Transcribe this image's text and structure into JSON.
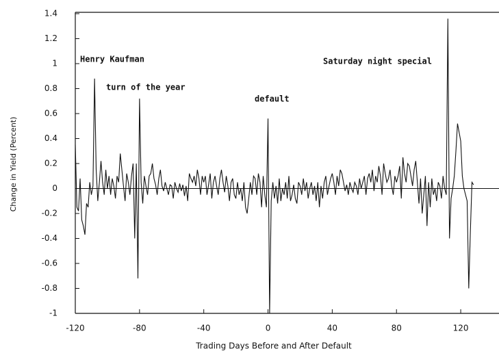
{
  "chart_data": {
    "type": "line",
    "ylabel": "Change in Yield (Percent)",
    "xlabel": "Trading Days Before and After Default",
    "annotations": [
      "Henry Kaufman",
      "turn of the year",
      "default",
      "Saturday night special"
    ],
    "xlim": [
      -120,
      140
    ],
    "ylim": [
      -1,
      1.4
    ],
    "xticks": [
      -120,
      -80,
      -40,
      0,
      40,
      80,
      120
    ],
    "yticks": [
      -1,
      -0.8,
      -0.6,
      -0.4,
      -0.2,
      0,
      0.2,
      0.4,
      0.6,
      0.8,
      1,
      1.2,
      1.4
    ],
    "color": "#111111",
    "x": [
      -120,
      -119,
      -118,
      -117,
      -116,
      -115,
      -114,
      -113,
      -112,
      -111,
      -110,
      -109,
      -108,
      -107,
      -106,
      -105,
      -104,
      -103,
      -102,
      -101,
      -100,
      -99,
      -98,
      -97,
      -96,
      -95,
      -94,
      -93,
      -92,
      -91,
      -90,
      -89,
      -88,
      -87,
      -86,
      -85,
      -84,
      -83,
      -82,
      -81,
      -80,
      -79,
      -78,
      -77,
      -76,
      -75,
      -74,
      -73,
      -72,
      -71,
      -70,
      -69,
      -68,
      -67,
      -66,
      -65,
      -64,
      -63,
      -62,
      -61,
      -60,
      -59,
      -58,
      -57,
      -56,
      -55,
      -54,
      -53,
      -52,
      -51,
      -50,
      -49,
      -48,
      -47,
      -46,
      -45,
      -44,
      -43,
      -42,
      -41,
      -40,
      -39,
      -38,
      -37,
      -36,
      -35,
      -34,
      -33,
      -32,
      -31,
      -30,
      -29,
      -28,
      -27,
      -26,
      -25,
      -24,
      -23,
      -22,
      -21,
      -20,
      -19,
      -18,
      -17,
      -16,
      -15,
      -14,
      -13,
      -12,
      -11,
      -10,
      -9,
      -8,
      -7,
      -6,
      -5,
      -4,
      -3,
      -2,
      -1,
      0,
      1,
      2,
      3,
      4,
      5,
      6,
      7,
      8,
      9,
      10,
      11,
      12,
      13,
      14,
      15,
      16,
      17,
      18,
      19,
      20,
      21,
      22,
      23,
      24,
      25,
      26,
      27,
      28,
      29,
      30,
      31,
      32,
      33,
      34,
      35,
      36,
      37,
      38,
      39,
      40,
      41,
      42,
      43,
      44,
      45,
      46,
      47,
      48,
      49,
      50,
      51,
      52,
      53,
      54,
      55,
      56,
      57,
      58,
      59,
      60,
      61,
      62,
      63,
      64,
      65,
      66,
      67,
      68,
      69,
      70,
      71,
      72,
      73,
      74,
      75,
      76,
      77,
      78,
      79,
      80,
      81,
      82,
      83,
      84,
      85,
      86,
      87,
      88,
      89,
      90,
      91,
      92,
      93,
      94,
      95,
      96,
      97,
      98,
      99,
      100,
      101,
      102,
      103,
      104,
      105,
      106,
      107,
      108,
      109,
      110,
      111,
      112,
      113,
      114,
      115,
      116,
      117,
      118,
      119,
      120,
      121,
      122,
      123,
      124,
      125,
      126,
      127,
      128
    ],
    "values": [
      0.35,
      -0.15,
      -0.18,
      0.08,
      -0.25,
      -0.3,
      -0.37,
      -0.12,
      -0.15,
      0.05,
      -0.05,
      0.02,
      0.88,
      0.15,
      -0.1,
      0.05,
      0.22,
      0.05,
      -0.05,
      0.15,
      0,
      0.1,
      -0.05,
      0.08,
      0.02,
      -0.08,
      0.1,
      0.05,
      0.28,
      0.15,
      0.02,
      -0.1,
      0.12,
      0.05,
      -0.05,
      0.1,
      0.2,
      -0.4,
      0.2,
      -0.72,
      0.72,
      0.05,
      -0.12,
      0.1,
      0.02,
      -0.05,
      0.1,
      0.12,
      0.2,
      0.08,
      0.03,
      -0.05,
      0.08,
      0.15,
      0.02,
      -0.02,
      0.05,
      0,
      -0.05,
      0.03,
      0.02,
      -0.08,
      0.05,
      0,
      -0.03,
      0.04,
      -0.02,
      0.03,
      -0.06,
      0.02,
      -0.1,
      0.12,
      0.08,
      0.05,
      0.1,
      0.02,
      0.15,
      0.08,
      -0.05,
      0.1,
      0.05,
      0.1,
      -0.05,
      0.03,
      0.12,
      -0.08,
      0.05,
      0.1,
      0.02,
      -0.05,
      0.08,
      0.15,
      0.05,
      -0.03,
      0.1,
      0.02,
      -0.1,
      0.05,
      0.08,
      -0.05,
      -0.08,
      0.05,
      -0.05,
      0,
      -0.1,
      0.05,
      -0.15,
      -0.2,
      -0.08,
      0.05,
      -0.05,
      0.1,
      0.08,
      -0.05,
      0.12,
      0.05,
      -0.15,
      0.1,
      -0.05,
      -0.15,
      0.56,
      -1.0,
      -0.1,
      0.05,
      -0.08,
      0.02,
      -0.12,
      0.08,
      -0.1,
      0,
      -0.05,
      0.05,
      -0.08,
      0.1,
      -0.1,
      -0.05,
      0.03,
      -0.08,
      -0.12,
      0.05,
      0.02,
      -0.05,
      0.08,
      -0.02,
      0.05,
      -0.08,
      0,
      0.05,
      -0.05,
      0.02,
      -0.1,
      0.05,
      -0.15,
      0.02,
      -0.08,
      0.05,
      0.1,
      -0.05,
      0.02,
      0.08,
      0.12,
      0.05,
      -0.05,
      0.1,
      0.02,
      0.15,
      0.12,
      0.05,
      -0.02,
      0.03,
      -0.05,
      0.05,
      0,
      -0.03,
      0.05,
      0.02,
      -0.05,
      0.08,
      0,
      0.05,
      0.1,
      -0.05,
      0.08,
      0.12,
      0.05,
      0.15,
      -0.02,
      0.1,
      0.05,
      0.18,
      0.1,
      -0.05,
      0.2,
      0.12,
      0.05,
      0.08,
      0.15,
      0.02,
      -0.05,
      0.1,
      0.05,
      0.1,
      0.18,
      -0.08,
      0.25,
      0.12,
      0.05,
      0.2,
      0.18,
      0.1,
      0.02,
      0.15,
      0.22,
      0.05,
      -0.12,
      0.08,
      -0.2,
      -0.05,
      0.1,
      -0.3,
      0.05,
      -0.15,
      0.08,
      -0.05,
      0,
      -0.1,
      0.05,
      0.02,
      -0.08,
      0.1,
      0,
      -0.05,
      1.36,
      -0.4,
      -0.08,
      0,
      0.1,
      0.3,
      0.52,
      0.45,
      0.38,
      0.1,
      0,
      -0.05,
      -0.1,
      -0.8,
      -0.35,
      0.05,
      0.03
    ]
  }
}
